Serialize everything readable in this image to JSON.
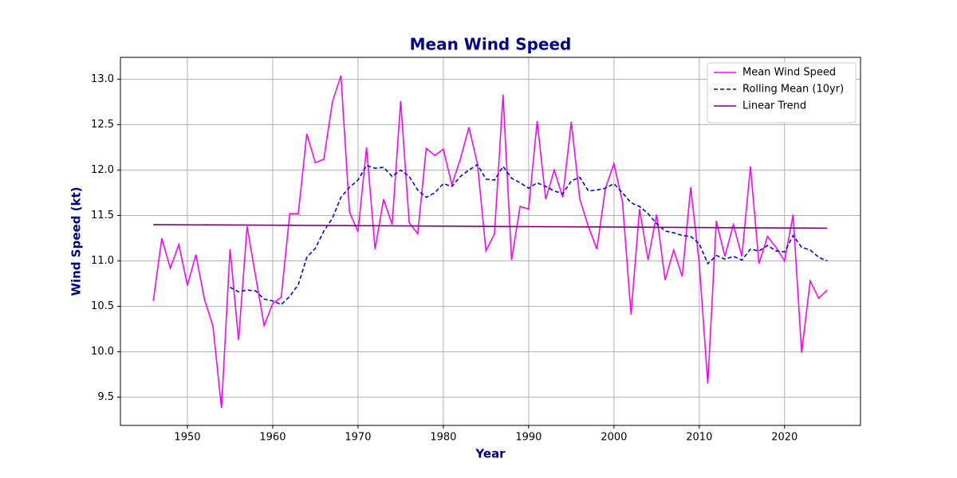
{
  "chart_data": {
    "type": "line",
    "title": "Mean Wind Speed",
    "x_label": "Year",
    "y_label": "Wind Speed (kt)",
    "x": [
      1946,
      1947,
      1948,
      1949,
      1950,
      1951,
      1952,
      1953,
      1954,
      1955,
      1956,
      1957,
      1958,
      1959,
      1960,
      1961,
      1962,
      1963,
      1964,
      1965,
      1966,
      1967,
      1968,
      1969,
      1970,
      1971,
      1972,
      1973,
      1974,
      1975,
      1976,
      1977,
      1978,
      1979,
      1980,
      1981,
      1982,
      1983,
      1984,
      1985,
      1986,
      1987,
      1988,
      1989,
      1990,
      1991,
      1992,
      1993,
      1994,
      1995,
      1996,
      1997,
      1998,
      1999,
      2000,
      2001,
      2002,
      2003,
      2004,
      2005,
      2006,
      2007,
      2008,
      2009,
      2010,
      2011,
      2012,
      2013,
      2014,
      2015,
      2016,
      2017,
      2018,
      2019,
      2020,
      2021,
      2022,
      2023,
      2024,
      2025
    ],
    "series": [
      {
        "name": "Mean Wind Speed",
        "color": "#ff00ff",
        "dash": false,
        "values": [
          10.56,
          11.25,
          10.92,
          11.18,
          10.73,
          11.07,
          10.58,
          10.28,
          9.38,
          11.13,
          10.13,
          11.38,
          10.83,
          10.29,
          10.53,
          10.6,
          11.52,
          11.52,
          12.4,
          12.08,
          12.12,
          12.75,
          13.04,
          11.54,
          11.32,
          12.25,
          11.13,
          11.68,
          11.4,
          12.76,
          11.42,
          11.3,
          12.24,
          12.16,
          12.23,
          11.84,
          12.12,
          12.47,
          12.07,
          11.11,
          11.3,
          12.83,
          11.01,
          11.6,
          11.57,
          12.54,
          11.68,
          12.0,
          11.7,
          12.53,
          11.68,
          11.38,
          11.13,
          11.8,
          12.07,
          11.65,
          10.41,
          11.57,
          11.01,
          11.51,
          10.79,
          11.12,
          10.83,
          11.81,
          10.97,
          9.65,
          11.44,
          11.05,
          11.4,
          11.05,
          12.04,
          10.97,
          11.27,
          11.15,
          11.0,
          11.51,
          9.99,
          10.78,
          10.59,
          10.68
        ]
      },
      {
        "name": "Rolling Mean (10yr)",
        "color": "#0000ff",
        "dash": true,
        "values": [
          null,
          null,
          null,
          null,
          null,
          null,
          null,
          null,
          null,
          10.71,
          10.66,
          10.68,
          10.67,
          10.58,
          10.56,
          10.52,
          10.61,
          10.74,
          11.04,
          11.14,
          11.33,
          11.47,
          11.7,
          11.81,
          11.89,
          12.05,
          12.02,
          12.03,
          11.93,
          12.0,
          11.93,
          11.78,
          11.7,
          11.75,
          11.85,
          11.82,
          11.93,
          12.0,
          12.06,
          11.9,
          11.89,
          12.04,
          11.91,
          11.86,
          11.8,
          11.86,
          11.82,
          11.77,
          11.74,
          11.88,
          11.92,
          11.77,
          11.78,
          11.8,
          11.85,
          11.75,
          11.64,
          11.6,
          11.52,
          11.41,
          11.33,
          11.31,
          11.28,
          11.27,
          11.19,
          10.97,
          11.06,
          11.02,
          11.05,
          11.01,
          11.13,
          11.11,
          11.17,
          11.11,
          11.1,
          11.28,
          11.15,
          11.12,
          11.04,
          11.0
        ]
      },
      {
        "name": "Linear Trend",
        "color": "#800080",
        "dash": false,
        "x": [
          1946,
          2025
        ],
        "values": [
          11.4,
          11.36
        ]
      }
    ],
    "xlim": [
      1942.15,
      2028.9
    ],
    "xticks": [
      1950,
      1960,
      1970,
      1980,
      1990,
      2000,
      2010,
      2020
    ],
    "ylim": [
      9.19,
      13.24
    ],
    "yticks": [
      9.5,
      {
        "value": 10,
        "label": "10.0"
      },
      10.5,
      {
        "value": 11,
        "label": "11.0"
      },
      11.5,
      {
        "value": 12,
        "label": "12.0"
      },
      12.5,
      {
        "value": 13,
        "label": "13.0"
      }
    ],
    "grid": true,
    "legend": "upper right"
  }
}
